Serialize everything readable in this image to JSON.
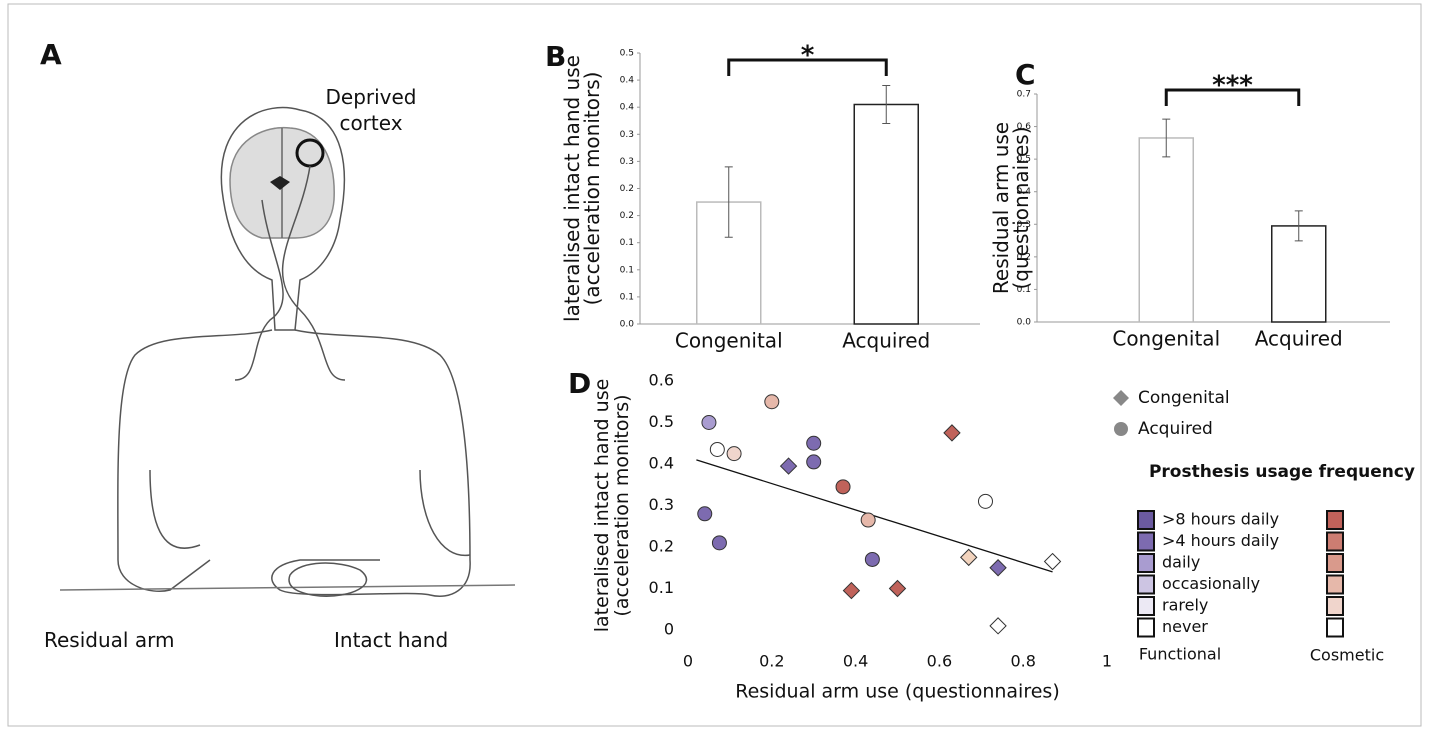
{
  "panel_a": {
    "label": "A",
    "cortex_label": "Deprived cortex",
    "arm_label": "Residual arm",
    "hand_label": "Intact hand"
  },
  "chart_data": [
    {
      "type": "bar",
      "panel": "B",
      "ylabel": [
        "lateralised intact hand use",
        "(acceleration monitors)"
      ],
      "categories": [
        "Congenital",
        "Acquired"
      ],
      "values": [
        0.225,
        0.405
      ],
      "errors": [
        0.065,
        0.035
      ],
      "color": "#ffffff",
      "edgecolors": [
        "#bbbbbb",
        "#222222"
      ],
      "ylim": [
        0,
        0.5
      ],
      "yticks": [
        {
          "value": 0,
          "label": "0.0"
        },
        {
          "value": 0.05,
          "label": "0.1"
        },
        0.1,
        {
          "value": 0.15,
          "label": "0.1"
        },
        {
          "value": 0.2,
          "label": "0.2"
        },
        {
          "value": 0.25,
          "label": "0.2"
        },
        0.3,
        {
          "value": 0.35,
          "label": "0.3"
        },
        0.4,
        {
          "value": 0.45,
          "label": "0.4"
        },
        0.5
      ],
      "significance": "*"
    },
    {
      "type": "bar",
      "panel": "C",
      "ylabel": [
        "Residual arm use",
        "(questionnaires)"
      ],
      "categories": [
        "Congenital",
        "Acquired"
      ],
      "values": [
        0.565,
        0.295
      ],
      "errors": [
        0.058,
        0.046
      ],
      "color": "#ffffff",
      "edgecolors": [
        "#bbbbbb",
        "#222222"
      ],
      "ylim": [
        0,
        0.7
      ],
      "yticks": [
        {
          "value": 0,
          "label": "0.0"
        },
        0.1,
        0.2,
        0.3,
        0.4,
        0.5,
        0.6,
        0.7
      ],
      "significance": "***"
    },
    {
      "type": "scatter",
      "panel": "D",
      "xlabel": "Residual arm use (questionnaires)",
      "ylabel": [
        "lateralised intact hand use",
        "(acceleration monitors)"
      ],
      "xlim": [
        0,
        1
      ],
      "xticks": [
        0,
        0.2,
        0.4,
        0.6,
        0.8,
        1
      ],
      "ylim": [
        0,
        0.6
      ],
      "yticks": [
        0,
        0.1,
        0.2,
        0.3,
        0.4,
        0.5,
        0.6
      ],
      "series": [
        {
          "name": "Congenital",
          "marker": "diamond",
          "color": "#888888",
          "x": [
            0.24,
            0.63,
            0.39,
            0.5,
            0.67,
            0.74,
            0.74,
            0.87
          ],
          "values": [
            0.395,
            0.475,
            0.095,
            0.1,
            0.175,
            0.15,
            0.01,
            0.165
          ],
          "colors": [
            "#7d6bb0",
            "#c0625a",
            "#c0625a",
            "#c0625a",
            "#f2d3bd",
            "#7d6bb0",
            "#ffffff",
            "#ffffff"
          ]
        },
        {
          "name": "Acquired",
          "marker": "circle",
          "color": "#888888",
          "x": [
            0.05,
            0.07,
            0.11,
            0.2,
            0.3,
            0.3,
            0.04,
            0.075,
            0.37,
            0.43,
            0.44,
            0.71
          ],
          "values": [
            0.5,
            0.435,
            0.425,
            0.55,
            0.45,
            0.405,
            0.28,
            0.21,
            0.345,
            0.265,
            0.17,
            0.31
          ],
          "colors": [
            "#a99cd0",
            "#ffffff",
            "#f0d5cc",
            "#e6b8aa",
            "#7d6bb0",
            "#7d6bb0",
            "#7d6bb0",
            "#7d6bb0",
            "#c0625a",
            "#e6b8aa",
            "#7d6bb0",
            "#ffffff"
          ]
        }
      ],
      "trend_line": {
        "x": [
          0.02,
          0.87
        ],
        "values": [
          0.41,
          0.14
        ]
      },
      "frequency_legend": {
        "title": "Prosthesis usage frequency",
        "levels": [
          ">8 hours daily",
          ">4 hours daily",
          "daily",
          "occasionally",
          "rarely",
          "never"
        ],
        "functional_colors": [
          "#6b5aa0",
          "#7d6bb0",
          "#a99cd0",
          "#cdc5e3",
          "#ece9f4",
          "#ffffff"
        ],
        "cosmetic_colors": [
          "#c0625a",
          "#cc7d72",
          "#d99a8c",
          "#e6b8aa",
          "#f0d5cc",
          "#ffffff"
        ],
        "functional_label": "Functional",
        "cosmetic_label": "Cosmetic"
      }
    }
  ]
}
